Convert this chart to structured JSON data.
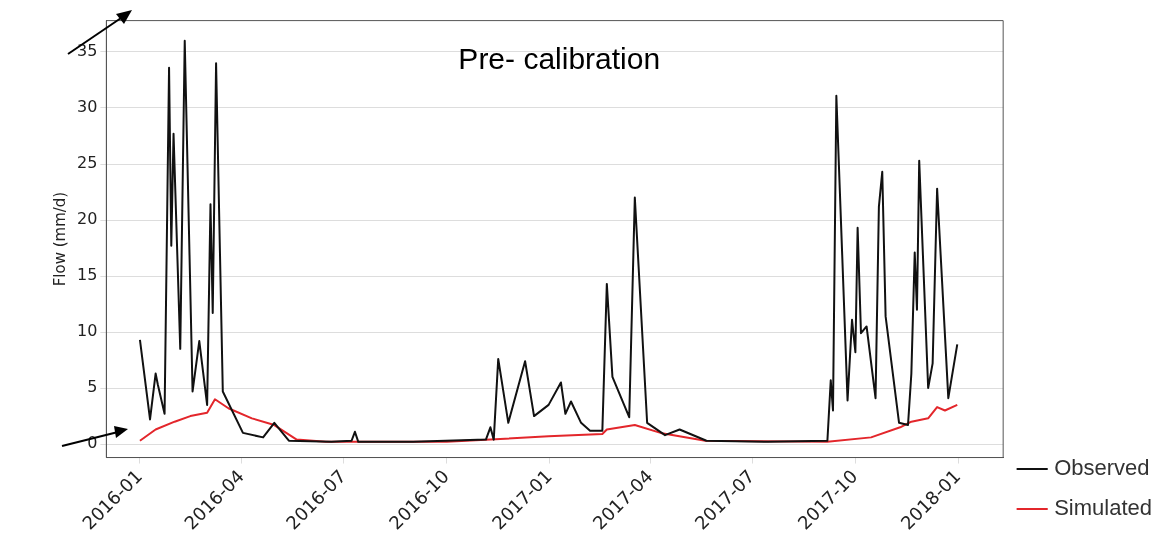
{
  "chart_data": {
    "type": "line",
    "title": "Pre- calibration",
    "ylabel": "Flow (mm/d)",
    "xlim": [
      "2015-12-02",
      "2018-02-10"
    ],
    "xticks": [
      "2016-01",
      "2016-04",
      "2016-07",
      "2016-10",
      "2017-01",
      "2017-04",
      "2017-07",
      "2017-10",
      "2018-01"
    ],
    "ylim": [
      -1.2,
      37.8
    ],
    "yticks": [
      0,
      5,
      10,
      15,
      20,
      25,
      30,
      35
    ],
    "grid": "y",
    "legend": "right",
    "marker": "none",
    "line_style": "solid",
    "series": [
      {
        "name": "Observed",
        "color": "#111111",
        "x": [
          "2016-01-01",
          "2016-01-10",
          "2016-01-15",
          "2016-01-17",
          "2016-01-23",
          "2016-01-27",
          "2016-01-29",
          "2016-01-31",
          "2016-02-06",
          "2016-02-10",
          "2016-02-17",
          "2016-02-23",
          "2016-03-01",
          "2016-03-04",
          "2016-03-06",
          "2016-03-09",
          "2016-03-15",
          "2016-04-02",
          "2016-04-20",
          "2016-04-30",
          "2016-05-13",
          "2016-06-20",
          "2016-07-08",
          "2016-07-11",
          "2016-07-14",
          "2016-09-01",
          "2016-11-05",
          "2016-11-09",
          "2016-11-12",
          "2016-11-16",
          "2016-11-25",
          "2016-12-10",
          "2016-12-18",
          "2016-12-31",
          "2017-01-11",
          "2017-01-15",
          "2017-01-20",
          "2017-01-29",
          "2017-02-06",
          "2017-02-17",
          "2017-02-21",
          "2017-02-26",
          "2017-03-13",
          "2017-03-18",
          "2017-03-29",
          "2017-04-14",
          "2017-04-27",
          "2017-05-21",
          "2017-07-15",
          "2017-09-06",
          "2017-09-09",
          "2017-09-11",
          "2017-09-14",
          "2017-09-24",
          "2017-09-28",
          "2017-10-01",
          "2017-10-03",
          "2017-10-04",
          "2017-10-06",
          "2017-10-11",
          "2017-10-19",
          "2017-10-22",
          "2017-10-25",
          "2017-10-28",
          "2017-11-09",
          "2017-11-17",
          "2017-11-20",
          "2017-11-23",
          "2017-11-25",
          "2017-11-27",
          "2017-12-05",
          "2017-12-09",
          "2017-12-13",
          "2017-12-23",
          "2017-12-31"
        ],
        "values": [
          9.3,
          2.2,
          6.3,
          5.3,
          2.7,
          33.6,
          17.7,
          27.7,
          8.5,
          36,
          4.7,
          9.2,
          3.5,
          21.4,
          11.7,
          34,
          4.7,
          1.0,
          0.6,
          1.9,
          0.3,
          0.2,
          0.3,
          1.1,
          0.2,
          0.2,
          0.4,
          1.5,
          0.4,
          7.6,
          1.9,
          7.4,
          2.5,
          3.5,
          5.5,
          2.7,
          3.8,
          1.9,
          1.2,
          1.2,
          14.3,
          6.0,
          2.4,
          22,
          1.9,
          0.8,
          1.3,
          0.3,
          0.2,
          0.3,
          5.7,
          3.0,
          31.1,
          3.9,
          11.1,
          8.2,
          19.3,
          16.2,
          9.9,
          10.5,
          4.1,
          21.2,
          24.3,
          11.4,
          1.9,
          1.7,
          6.3,
          17.1,
          12,
          25.3,
          5.0,
          7.2,
          22.8,
          4.1,
          8.9
        ]
      },
      {
        "name": "Simulated",
        "color": "#e3262b",
        "x": [
          "2016-01-01",
          "2016-01-15",
          "2016-02-01",
          "2016-02-15",
          "2016-03-01",
          "2016-03-08",
          "2016-03-20",
          "2016-04-10",
          "2016-04-30",
          "2016-05-20",
          "2016-06-15",
          "2016-10-01",
          "2016-12-31",
          "2017-02-17",
          "2017-02-21",
          "2017-03-18",
          "2017-04-10",
          "2017-05-20",
          "2017-09-06",
          "2017-10-15",
          "2017-11-10",
          "2017-11-20",
          "2017-12-05",
          "2017-12-13",
          "2017-12-20",
          "2017-12-31"
        ],
        "values": [
          0.3,
          1.3,
          2.0,
          2.5,
          2.8,
          4.0,
          3.2,
          2.3,
          1.7,
          0.4,
          0.2,
          0.2,
          0.7,
          0.9,
          1.3,
          1.7,
          1.0,
          0.3,
          0.2,
          0.6,
          1.5,
          2.0,
          2.3,
          3.3,
          3.0,
          3.5
        ]
      }
    ]
  }
}
